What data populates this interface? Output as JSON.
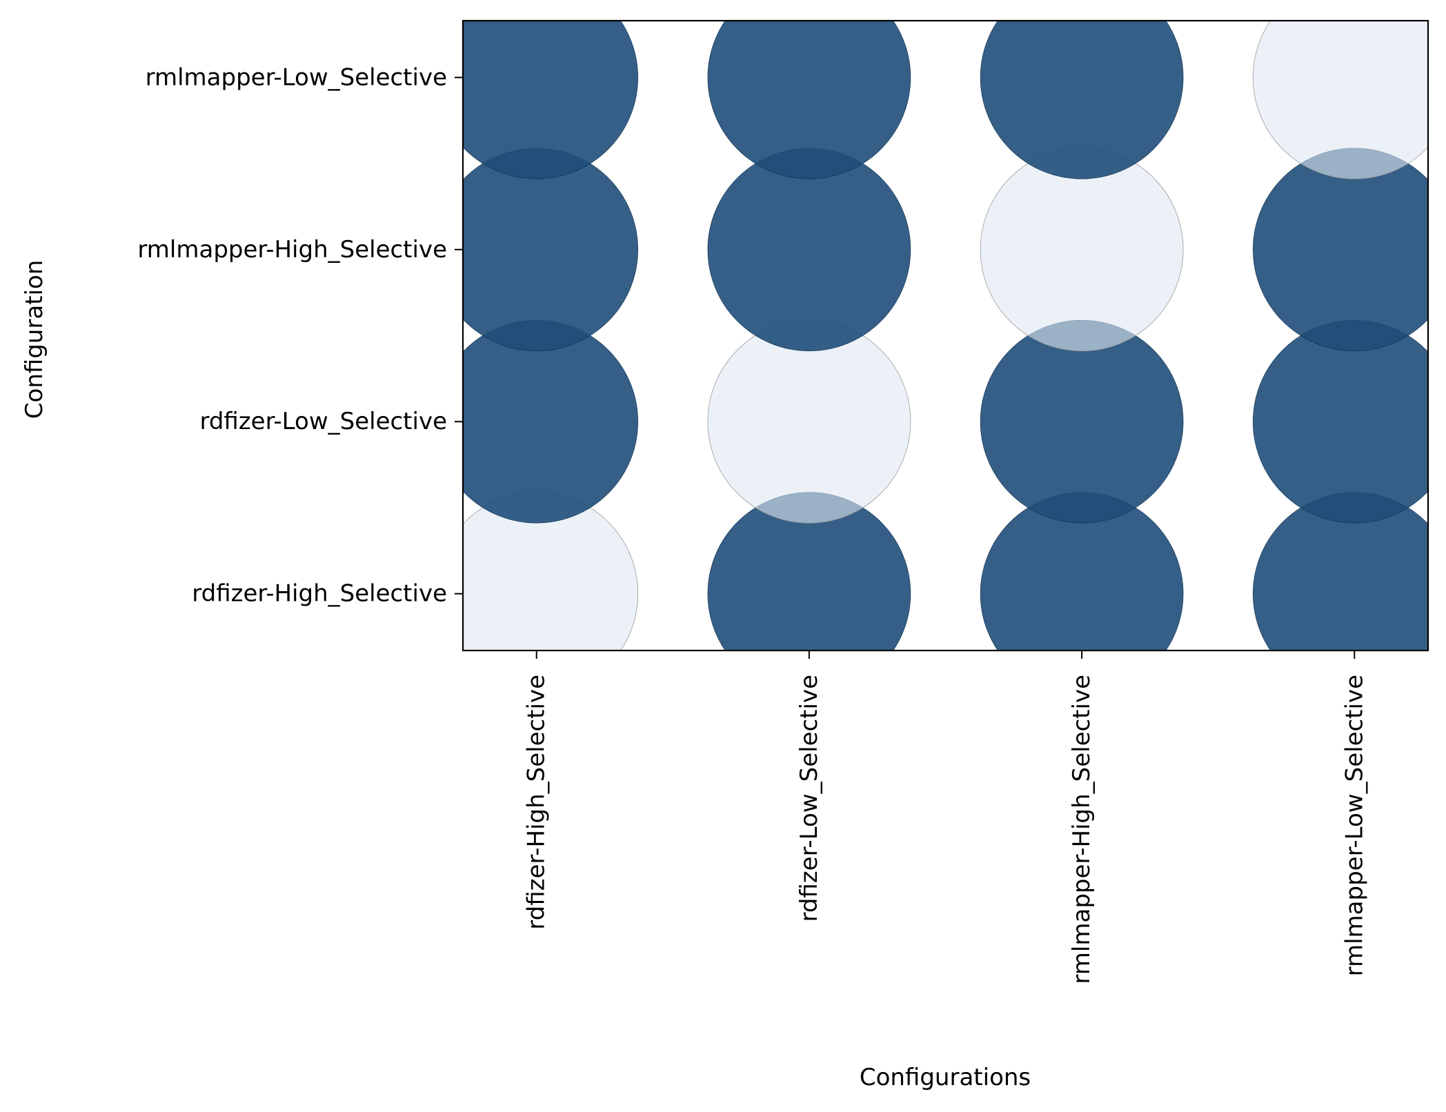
{
  "chart_data": {
    "type": "scatter",
    "xlabel": "Configurations",
    "ylabel": "Configuration",
    "x_categories": [
      "rdfizer-High_Selective",
      "rdfizer-Low_Selective",
      "rmlmapper-High_Selective",
      "rmlmapper-Low_Selective"
    ],
    "y_categories": [
      "rdfizer-High_Selective",
      "rdfizer-Low_Selective",
      "rmlmapper-High_Selective",
      "rmlmapper-Low_Selective"
    ],
    "points": [
      {
        "x": "rdfizer-High_Selective",
        "y": "rdfizer-High_Selective",
        "intensity": 0.1
      },
      {
        "x": "rdfizer-High_Selective",
        "y": "rdfizer-Low_Selective",
        "intensity": 1.0
      },
      {
        "x": "rdfizer-High_Selective",
        "y": "rmlmapper-High_Selective",
        "intensity": 1.0
      },
      {
        "x": "rdfizer-High_Selective",
        "y": "rmlmapper-Low_Selective",
        "intensity": 1.0
      },
      {
        "x": "rdfizer-Low_Selective",
        "y": "rdfizer-High_Selective",
        "intensity": 1.0
      },
      {
        "x": "rdfizer-Low_Selective",
        "y": "rdfizer-Low_Selective",
        "intensity": 0.1
      },
      {
        "x": "rdfizer-Low_Selective",
        "y": "rmlmapper-High_Selective",
        "intensity": 1.0
      },
      {
        "x": "rdfizer-Low_Selective",
        "y": "rmlmapper-Low_Selective",
        "intensity": 1.0
      },
      {
        "x": "rmlmapper-High_Selective",
        "y": "rdfizer-High_Selective",
        "intensity": 1.0
      },
      {
        "x": "rmlmapper-High_Selective",
        "y": "rdfizer-Low_Selective",
        "intensity": 1.0
      },
      {
        "x": "rmlmapper-High_Selective",
        "y": "rmlmapper-High_Selective",
        "intensity": 0.1
      },
      {
        "x": "rmlmapper-High_Selective",
        "y": "rmlmapper-Low_Selective",
        "intensity": 1.0
      },
      {
        "x": "rmlmapper-Low_Selective",
        "y": "rdfizer-High_Selective",
        "intensity": 1.0
      },
      {
        "x": "rmlmapper-Low_Selective",
        "y": "rdfizer-Low_Selective",
        "intensity": 1.0
      },
      {
        "x": "rmlmapper-Low_Selective",
        "y": "rmlmapper-High_Selective",
        "intensity": 1.0
      },
      {
        "x": "rmlmapper-Low_Selective",
        "y": "rmlmapper-Low_Selective",
        "intensity": 0.1
      }
    ],
    "colors": {
      "strong": "#1f4e79",
      "weak": "#dde7f1"
    },
    "grid": false,
    "legend": "none"
  }
}
